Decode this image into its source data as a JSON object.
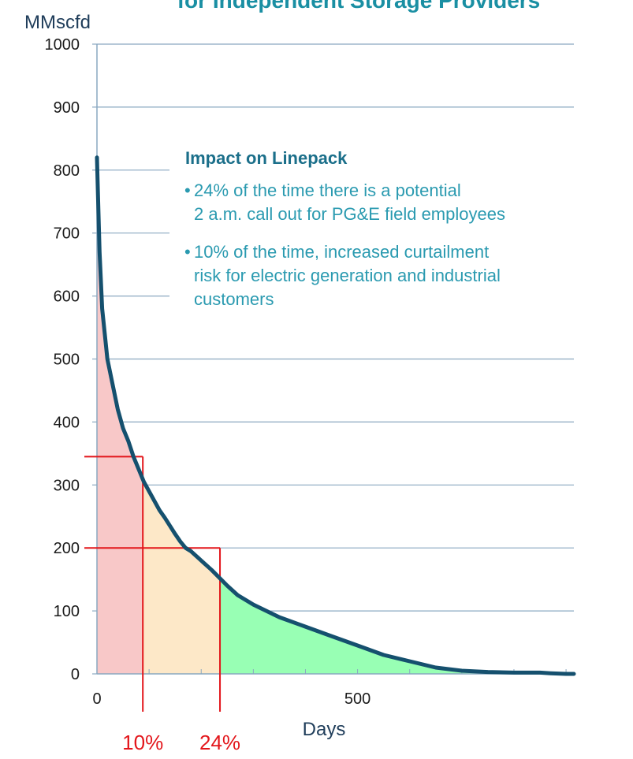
{
  "chart_data": {
    "type": "area",
    "title": "for Independent Storage Providers",
    "ylabel": "MMscfd",
    "xlabel": "Days",
    "xlim": [
      0,
      915
    ],
    "ylim": [
      0,
      1000
    ],
    "x_ticks": [
      0,
      500
    ],
    "y_ticks": [
      0,
      100,
      200,
      300,
      400,
      500,
      600,
      700,
      800,
      900,
      1000
    ],
    "grid": "horizontal",
    "series": [
      {
        "x": [
          0,
          2,
          5,
          10,
          15,
          20,
          30,
          40,
          50,
          60,
          70,
          80,
          90,
          100,
          110,
          120,
          130,
          140,
          150,
          160,
          170,
          180,
          200,
          220,
          250,
          270,
          300,
          350,
          400,
          450,
          500,
          550,
          600,
          650,
          700,
          750,
          800,
          850,
          870,
          900,
          915
        ],
        "y": [
          820,
          760,
          670,
          580,
          540,
          500,
          460,
          420,
          390,
          370,
          345,
          325,
          305,
          290,
          275,
          260,
          248,
          235,
          222,
          210,
          200,
          195,
          180,
          165,
          140,
          125,
          110,
          90,
          75,
          60,
          45,
          30,
          20,
          10,
          5,
          3,
          2,
          2,
          1,
          0,
          0
        ]
      }
    ],
    "regions": [
      {
        "from": 0,
        "to": 88,
        "color": "#f8c8c8"
      },
      {
        "from": 88,
        "to": 236,
        "color": "#fde8c8"
      },
      {
        "from": 236,
        "to": 915,
        "color": "#98ffb4"
      }
    ],
    "markers": [
      {
        "x": 88,
        "y": 345,
        "label": "10%"
      },
      {
        "x": 236,
        "y": 200,
        "label": "24%"
      }
    ],
    "annotation": {
      "title": "Impact on Linepack",
      "bullets": [
        [
          "24% of the time there is a potential",
          "2 a.m. call out for PG&E field employees"
        ],
        [
          "10% of the time, increased curtailment",
          "risk for electric generation and industrial",
          "customers"
        ]
      ]
    }
  }
}
